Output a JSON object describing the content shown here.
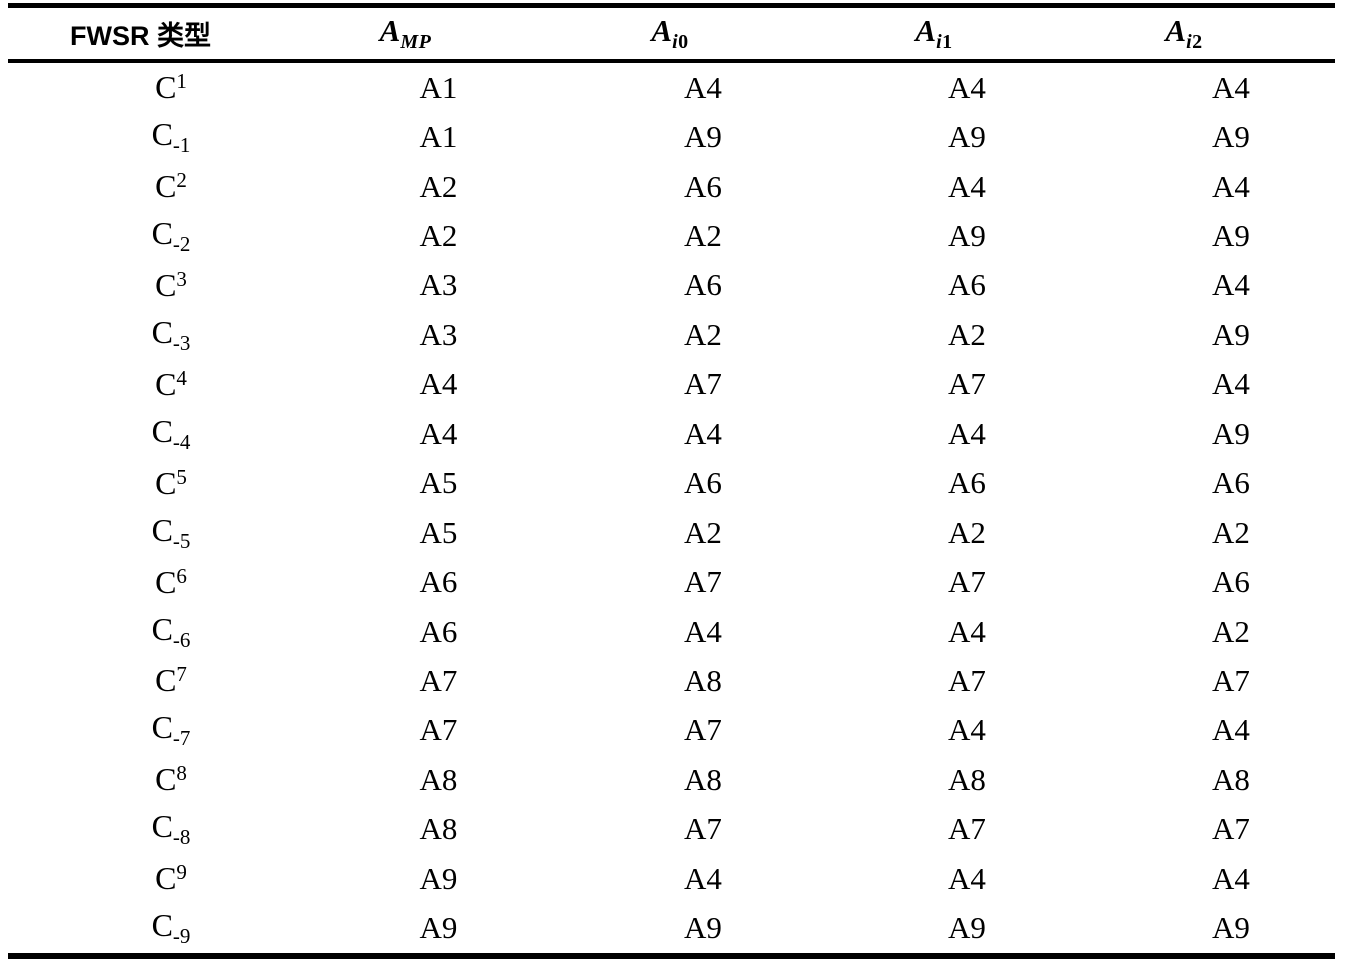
{
  "colors": {
    "text": "#000000",
    "background": "#ffffff",
    "rule": "#000000"
  },
  "table": {
    "style": "three-line booktabs table",
    "header": {
      "type_label": "FWSR 类型",
      "cols": [
        {
          "base": "A",
          "sub_letter": "MP",
          "sub_digit": ""
        },
        {
          "base": "A",
          "sub_letter": "i",
          "sub_digit": "0"
        },
        {
          "base": "A",
          "sub_letter": "i",
          "sub_digit": "1"
        },
        {
          "base": "A",
          "sub_letter": "i",
          "sub_digit": "2"
        }
      ]
    },
    "rows": [
      {
        "label": {
          "base": "C",
          "script": "1",
          "position": "sup"
        },
        "values": [
          "A1",
          "A4",
          "A4",
          "A4"
        ]
      },
      {
        "label": {
          "base": "C",
          "script": "-1",
          "position": "sub"
        },
        "values": [
          "A1",
          "A9",
          "A9",
          "A9"
        ]
      },
      {
        "label": {
          "base": "C",
          "script": "2",
          "position": "sup"
        },
        "values": [
          "A2",
          "A6",
          "A4",
          "A4"
        ]
      },
      {
        "label": {
          "base": "C",
          "script": "-2",
          "position": "sub"
        },
        "values": [
          "A2",
          "A2",
          "A9",
          "A9"
        ]
      },
      {
        "label": {
          "base": "C",
          "script": "3",
          "position": "sup"
        },
        "values": [
          "A3",
          "A6",
          "A6",
          "A4"
        ]
      },
      {
        "label": {
          "base": "C",
          "script": "-3",
          "position": "sub"
        },
        "values": [
          "A3",
          "A2",
          "A2",
          "A9"
        ]
      },
      {
        "label": {
          "base": "C",
          "script": "4",
          "position": "sup"
        },
        "values": [
          "A4",
          "A7",
          "A7",
          "A4"
        ]
      },
      {
        "label": {
          "base": "C",
          "script": "-4",
          "position": "sub"
        },
        "values": [
          "A4",
          "A4",
          "A4",
          "A9"
        ]
      },
      {
        "label": {
          "base": "C",
          "script": "5",
          "position": "sup"
        },
        "values": [
          "A5",
          "A6",
          "A6",
          "A6"
        ]
      },
      {
        "label": {
          "base": "C",
          "script": "-5",
          "position": "sub"
        },
        "values": [
          "A5",
          "A2",
          "A2",
          "A2"
        ]
      },
      {
        "label": {
          "base": "C",
          "script": "6",
          "position": "sup"
        },
        "values": [
          "A6",
          "A7",
          "A7",
          "A6"
        ]
      },
      {
        "label": {
          "base": "C",
          "script": "-6",
          "position": "sub"
        },
        "values": [
          "A6",
          "A4",
          "A4",
          "A2"
        ]
      },
      {
        "label": {
          "base": "C",
          "script": "7",
          "position": "sup"
        },
        "values": [
          "A7",
          "A8",
          "A7",
          "A7"
        ]
      },
      {
        "label": {
          "base": "C",
          "script": "-7",
          "position": "sub"
        },
        "values": [
          "A7",
          "A7",
          "A4",
          "A4"
        ]
      },
      {
        "label": {
          "base": "C",
          "script": "8",
          "position": "sup"
        },
        "values": [
          "A8",
          "A8",
          "A8",
          "A8"
        ]
      },
      {
        "label": {
          "base": "C",
          "script": "-8",
          "position": "sub"
        },
        "values": [
          "A8",
          "A7",
          "A7",
          "A7"
        ]
      },
      {
        "label": {
          "base": "C",
          "script": "9",
          "position": "sup"
        },
        "values": [
          "A9",
          "A4",
          "A4",
          "A4"
        ]
      },
      {
        "label": {
          "base": "C",
          "script": "-9",
          "position": "sub"
        },
        "values": [
          "A9",
          "A9",
          "A9",
          "A9"
        ]
      }
    ]
  }
}
